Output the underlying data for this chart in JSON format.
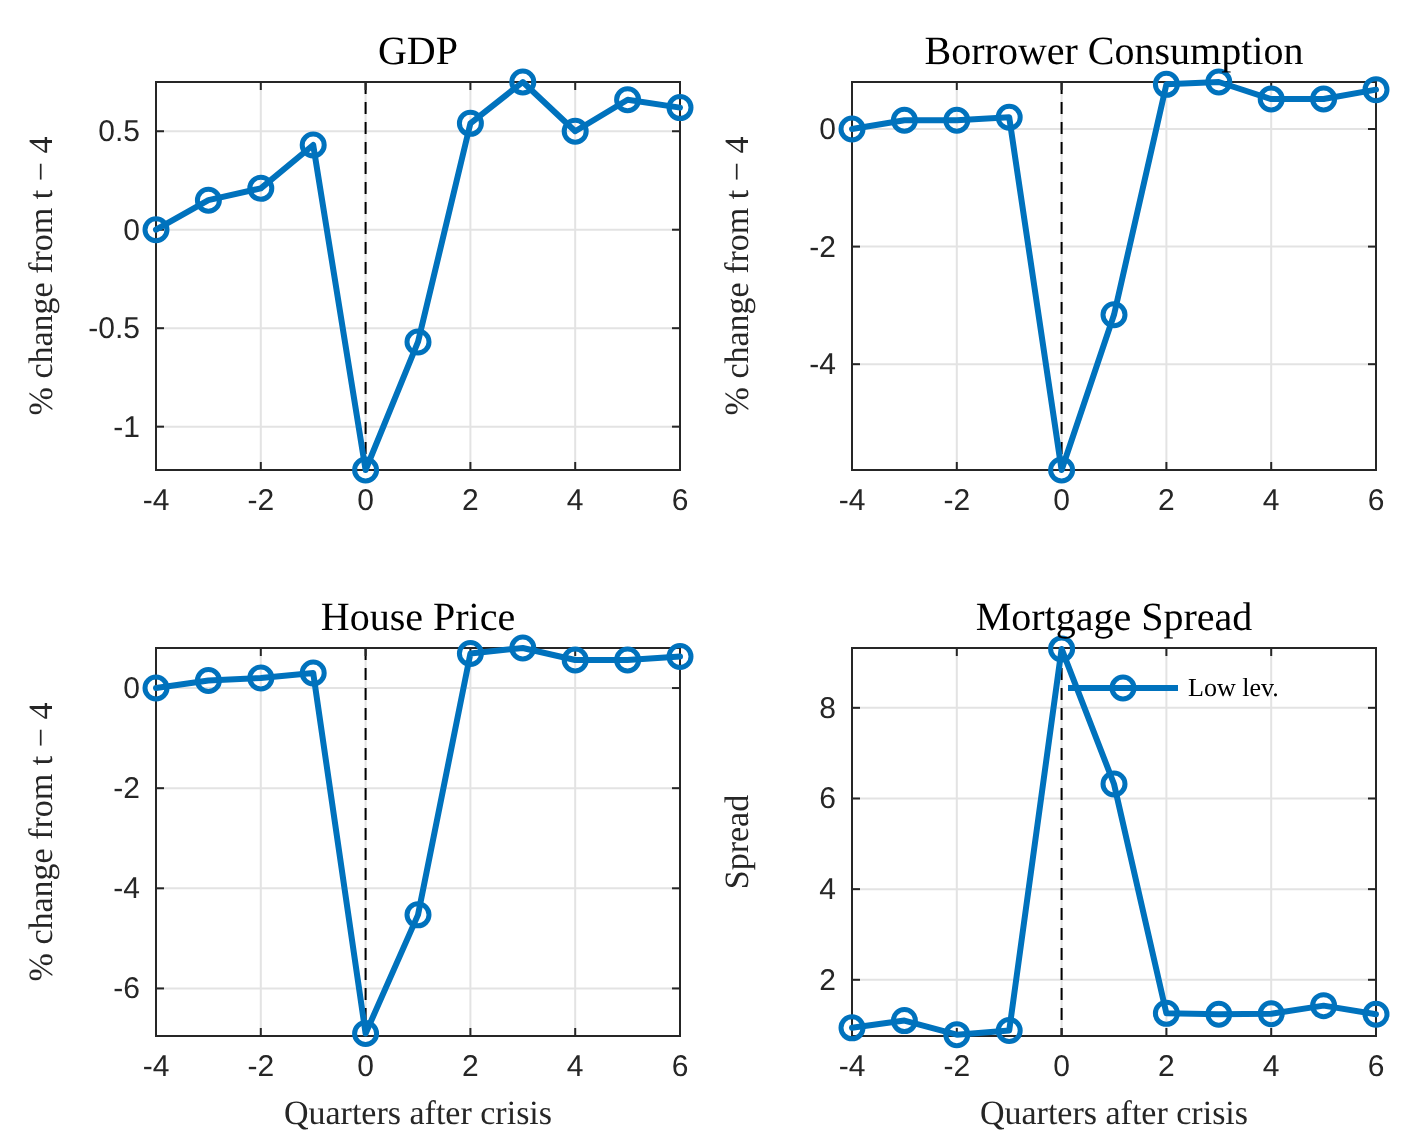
{
  "chart_data": [
    {
      "type": "line",
      "title": "GDP",
      "ylabel": "% change from t − 4",
      "x": [
        -4,
        -3,
        -2,
        -1,
        0,
        1,
        2,
        3,
        4,
        5,
        6
      ],
      "series": [
        {
          "color": "#0072bd",
          "values": [
            0,
            0.15,
            0.21,
            0.43,
            -1.22,
            -0.57,
            0.54,
            0.75,
            0.5,
            0.66,
            0.62
          ]
        }
      ],
      "xlim": [
        -4,
        6
      ],
      "xticks": [
        -4,
        -2,
        0,
        2,
        4,
        6
      ],
      "ylim": [
        -1.22,
        0.75
      ],
      "yticks": [
        {
          "value": -1,
          "label": "-1"
        },
        {
          "value": -0.5,
          "label": "-0.5"
        },
        0,
        0.5
      ],
      "grid": true,
      "marker": "circle",
      "ref_lines": [
        {
          "axis": "x",
          "value": 0,
          "color": "#000000",
          "line_style": "dashed"
        }
      ]
    },
    {
      "type": "line",
      "title": "Borrower Consumption",
      "ylabel": "% change from t − 4",
      "x": [
        -4,
        -3,
        -2,
        -1,
        0,
        1,
        2,
        3,
        4,
        5,
        6
      ],
      "series": [
        {
          "color": "#0072bd",
          "values": [
            0,
            0.15,
            0.15,
            0.2,
            -5.8,
            -3.16,
            0.76,
            0.8,
            0.51,
            0.51,
            0.67
          ]
        }
      ],
      "xlim": [
        -4,
        6
      ],
      "xticks": [
        -4,
        -2,
        0,
        2,
        4,
        6
      ],
      "ylim": [
        -5.8,
        0.8
      ],
      "yticks": [
        {
          "value": -4,
          "label": "-4"
        },
        {
          "value": -2,
          "label": "-2"
        },
        0
      ],
      "grid": true,
      "marker": "circle",
      "ref_lines": [
        {
          "axis": "x",
          "value": 0,
          "color": "#000000",
          "line_style": "dashed"
        }
      ]
    },
    {
      "type": "line",
      "title": "House Price",
      "xlabel": "Quarters after crisis",
      "ylabel": "% change from t − 4",
      "x": [
        -4,
        -3,
        -2,
        -1,
        0,
        1,
        2,
        3,
        4,
        5,
        6
      ],
      "series": [
        {
          "color": "#0072bd",
          "values": [
            0,
            0.15,
            0.2,
            0.3,
            -6.9,
            -4.53,
            0.69,
            0.8,
            0.56,
            0.56,
            0.63
          ]
        }
      ],
      "xlim": [
        -4,
        6
      ],
      "xticks": [
        -4,
        -2,
        0,
        2,
        4,
        6
      ],
      "ylim": [
        -6.95,
        0.8
      ],
      "yticks": [
        {
          "value": -6,
          "label": "-6"
        },
        {
          "value": -4,
          "label": "-4"
        },
        {
          "value": -2,
          "label": "-2"
        },
        0
      ],
      "grid": true,
      "marker": "circle",
      "ref_lines": [
        {
          "axis": "x",
          "value": 0,
          "color": "#000000",
          "line_style": "dashed"
        }
      ]
    },
    {
      "type": "line",
      "title": "Mortgage Spread",
      "xlabel": "Quarters after crisis",
      "ylabel": "Spread",
      "x": [
        -4,
        -3,
        -2,
        -1,
        0,
        1,
        2,
        3,
        4,
        5,
        6
      ],
      "series": [
        {
          "name": "Low lev.",
          "color": "#0072bd",
          "values": [
            0.94,
            1.1,
            0.79,
            0.88,
            9.3,
            6.32,
            1.26,
            1.24,
            1.25,
            1.43,
            1.24
          ]
        }
      ],
      "xlim": [
        -4,
        6
      ],
      "xticks": [
        -4,
        -2,
        0,
        2,
        4,
        6
      ],
      "ylim": [
        0.76,
        9.32
      ],
      "yticks": [
        2,
        4,
        6,
        8
      ],
      "grid": true,
      "legend": "top right",
      "marker": "circle",
      "ref_lines": [
        {
          "axis": "x",
          "value": 0,
          "color": "#000000",
          "line_style": "dashed"
        }
      ]
    }
  ]
}
